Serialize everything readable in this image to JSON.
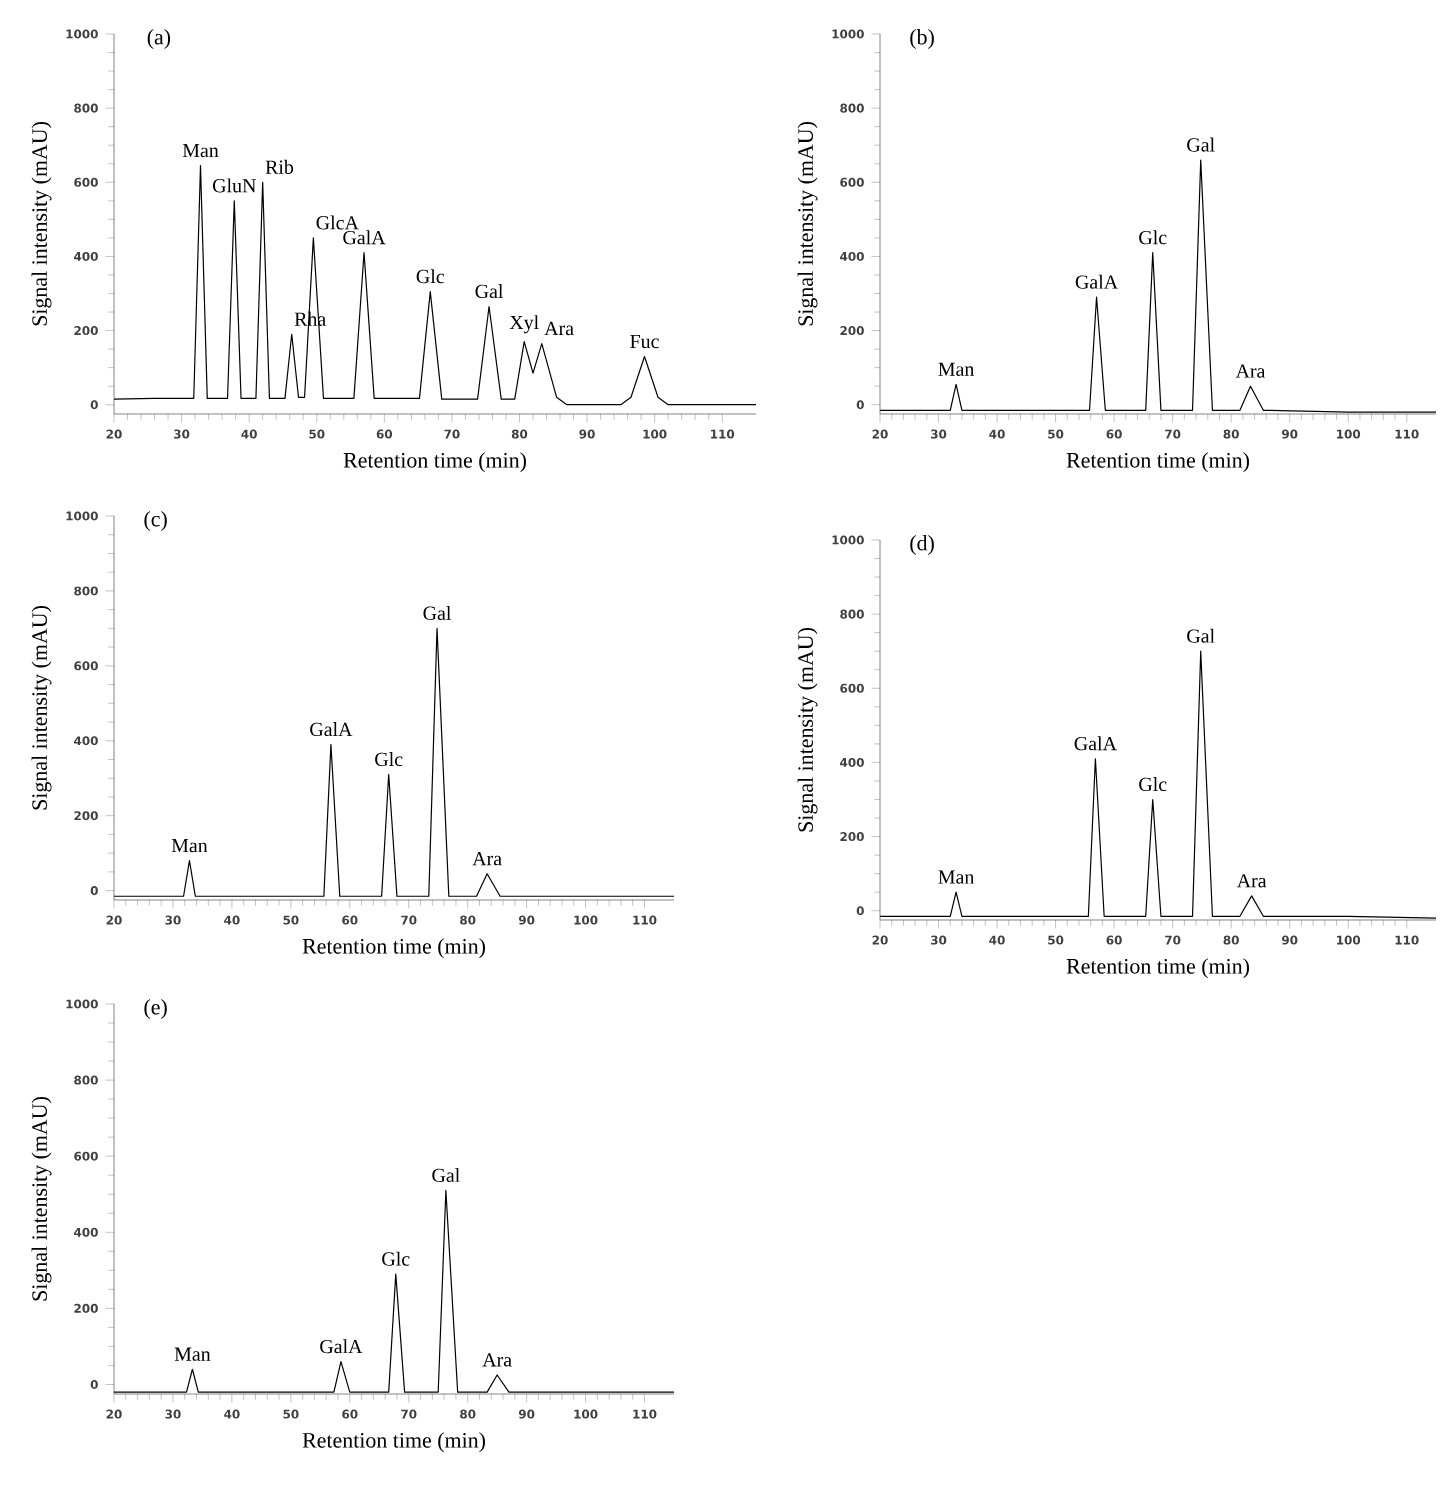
{
  "chart_data": [
    {
      "type": "line",
      "title": "(a)",
      "xlabel": "Retention time (min)",
      "ylabel": "Signal intensity (mAU)",
      "color": "#000000",
      "x": [
        20,
        26,
        31.8,
        32.8,
        33.8,
        36.8,
        37.8,
        38.8,
        41.0,
        42.0,
        43.0,
        45.3,
        46.3,
        47.3,
        48.2,
        49.5,
        51.0,
        55.5,
        57.0,
        58.5,
        65.2,
        66.8,
        68.5,
        73.8,
        75.5,
        77.3,
        79.3,
        80.7,
        82.0,
        83.3,
        85.5,
        87,
        95,
        96.5,
        98.5,
        100.5,
        102,
        115
      ],
      "values": [
        15,
        17,
        17,
        645,
        17,
        17,
        550,
        17,
        17,
        600,
        17,
        17,
        190,
        20,
        20,
        450,
        17,
        17,
        410,
        17,
        17,
        305,
        15,
        15,
        265,
        15,
        15,
        170,
        85,
        165,
        20,
        0,
        0,
        20,
        130,
        20,
        0,
        0
      ],
      "xlim": [
        20,
        115
      ],
      "ylim": [
        -25,
        1000
      ],
      "xticks": [
        20,
        30,
        40,
        50,
        60,
        70,
        80,
        90,
        100,
        110
      ],
      "yticks": [
        0,
        200,
        400,
        600,
        800,
        1000
      ],
      "annotations": [
        {
          "text": "Man",
          "x": 32.8,
          "y": 645
        },
        {
          "text": "GluN",
          "x": 37.8,
          "y": 550
        },
        {
          "text": "Rib",
          "x": 42.0,
          "y": 600
        },
        {
          "text": "Rha",
          "x": 46.3,
          "y": 190
        },
        {
          "text": "GlcA",
          "x": 49.5,
          "y": 450
        },
        {
          "text": "GalA",
          "x": 57.0,
          "y": 410
        },
        {
          "text": "Glc",
          "x": 66.8,
          "y": 305
        },
        {
          "text": "Gal",
          "x": 75.5,
          "y": 265
        },
        {
          "text": "Xyl",
          "x": 80.7,
          "y": 170
        },
        {
          "text": "Ara",
          "x": 83.3,
          "y": 165
        },
        {
          "text": "Fuc",
          "x": 98.5,
          "y": 130
        }
      ]
    },
    {
      "type": "line",
      "title": "(b)",
      "xlabel": "Retention time (min)",
      "ylabel": "Signal intensity (mAU)",
      "color": "#000000",
      "x": [
        20,
        32,
        33,
        34,
        55.8,
        57,
        58.5,
        65.4,
        66.6,
        68,
        73.4,
        74.8,
        76.8,
        81.5,
        83.3,
        85.5,
        100,
        115
      ],
      "values": [
        -15,
        -15,
        55,
        -15,
        -15,
        290,
        -15,
        -15,
        410,
        -15,
        -15,
        660,
        -15,
        -15,
        50,
        -15,
        -20,
        -20
      ],
      "xlim": [
        20,
        115
      ],
      "ylim": [
        -25,
        1000
      ],
      "xticks": [
        20,
        30,
        40,
        50,
        60,
        70,
        80,
        90,
        100,
        110
      ],
      "yticks": [
        0,
        200,
        400,
        600,
        800,
        1000
      ],
      "annotations": [
        {
          "text": "Man",
          "x": 33,
          "y": 55
        },
        {
          "text": "GalA",
          "x": 57,
          "y": 290
        },
        {
          "text": "Glc",
          "x": 66.6,
          "y": 410
        },
        {
          "text": "Gal",
          "x": 74.8,
          "y": 660
        },
        {
          "text": "Ara",
          "x": 83.3,
          "y": 50
        }
      ]
    },
    {
      "type": "line",
      "title": "(c)",
      "xlabel": "Retention time (min)",
      "ylabel": "Signal intensity (mAU)",
      "color": "#000000",
      "x": [
        20,
        31.8,
        32.8,
        33.8,
        55.6,
        56.8,
        58.3,
        65.4,
        66.6,
        68,
        73.4,
        74.8,
        76.8,
        81.5,
        83.3,
        85.5,
        100,
        115
      ],
      "values": [
        -15,
        -15,
        80,
        -15,
        -15,
        390,
        -15,
        -15,
        310,
        -15,
        -15,
        700,
        -15,
        -15,
        45,
        -15,
        -15,
        -15
      ],
      "xlim": [
        20,
        115
      ],
      "ylim": [
        -25,
        1000
      ],
      "xticks": [
        20,
        30,
        40,
        50,
        60,
        70,
        80,
        90,
        100,
        110
      ],
      "yticks": [
        0,
        200,
        400,
        600,
        800,
        1000
      ],
      "annotations": [
        {
          "text": "Man",
          "x": 32.8,
          "y": 80
        },
        {
          "text": "GalA",
          "x": 56.8,
          "y": 390
        },
        {
          "text": "Glc",
          "x": 66.6,
          "y": 310
        },
        {
          "text": "Gal",
          "x": 74.8,
          "y": 700
        },
        {
          "text": "Ara",
          "x": 83.3,
          "y": 45
        }
      ]
    },
    {
      "type": "line",
      "title": "(d)",
      "xlabel": "Retention time (min)",
      "ylabel": "Signal intensity (mAU)",
      "color": "#000000",
      "x": [
        20,
        32,
        33,
        34,
        55.6,
        56.8,
        58.3,
        65.4,
        66.6,
        68,
        73.4,
        74.8,
        76.8,
        81.5,
        83.5,
        85.5,
        100,
        115
      ],
      "values": [
        -15,
        -15,
        50,
        -15,
        -15,
        410,
        -15,
        -15,
        300,
        -15,
        -15,
        700,
        -15,
        -15,
        40,
        -15,
        -15,
        -20
      ],
      "xlim": [
        20,
        115
      ],
      "ylim": [
        -25,
        1000
      ],
      "xticks": [
        20,
        30,
        40,
        50,
        60,
        70,
        80,
        90,
        100,
        110
      ],
      "yticks": [
        0,
        200,
        400,
        600,
        800,
        1000
      ],
      "annotations": [
        {
          "text": "Man",
          "x": 33,
          "y": 50
        },
        {
          "text": "GalA",
          "x": 56.8,
          "y": 410
        },
        {
          "text": "Glc",
          "x": 66.6,
          "y": 300
        },
        {
          "text": "Gal",
          "x": 74.8,
          "y": 700
        },
        {
          "text": "Ara",
          "x": 83.5,
          "y": 40
        }
      ]
    },
    {
      "type": "line",
      "title": "(e)",
      "xlabel": "Retention time (min)",
      "ylabel": "Signal intensity (mAU)",
      "color": "#000000",
      "x": [
        20,
        32.3,
        33.3,
        34.3,
        57.3,
        58.5,
        60,
        66.6,
        67.8,
        69.3,
        75,
        76.3,
        78.3,
        83.3,
        85,
        87,
        100,
        115
      ],
      "values": [
        -20,
        -20,
        40,
        -20,
        -20,
        60,
        -20,
        -20,
        290,
        -20,
        -20,
        510,
        -20,
        -20,
        25,
        -20,
        -20,
        -20
      ],
      "xlim": [
        20,
        115
      ],
      "ylim": [
        -25,
        1000
      ],
      "xticks": [
        20,
        30,
        40,
        50,
        60,
        70,
        80,
        90,
        100,
        110
      ],
      "yticks": [
        0,
        200,
        400,
        600,
        800,
        1000
      ],
      "annotations": [
        {
          "text": "Man",
          "x": 33.3,
          "y": 40
        },
        {
          "text": "GalA",
          "x": 58.5,
          "y": 60
        },
        {
          "text": "Glc",
          "x": 67.8,
          "y": 290
        },
        {
          "text": "Gal",
          "x": 76.3,
          "y": 510
        },
        {
          "text": "Ara",
          "x": 85,
          "y": 25
        }
      ]
    }
  ]
}
